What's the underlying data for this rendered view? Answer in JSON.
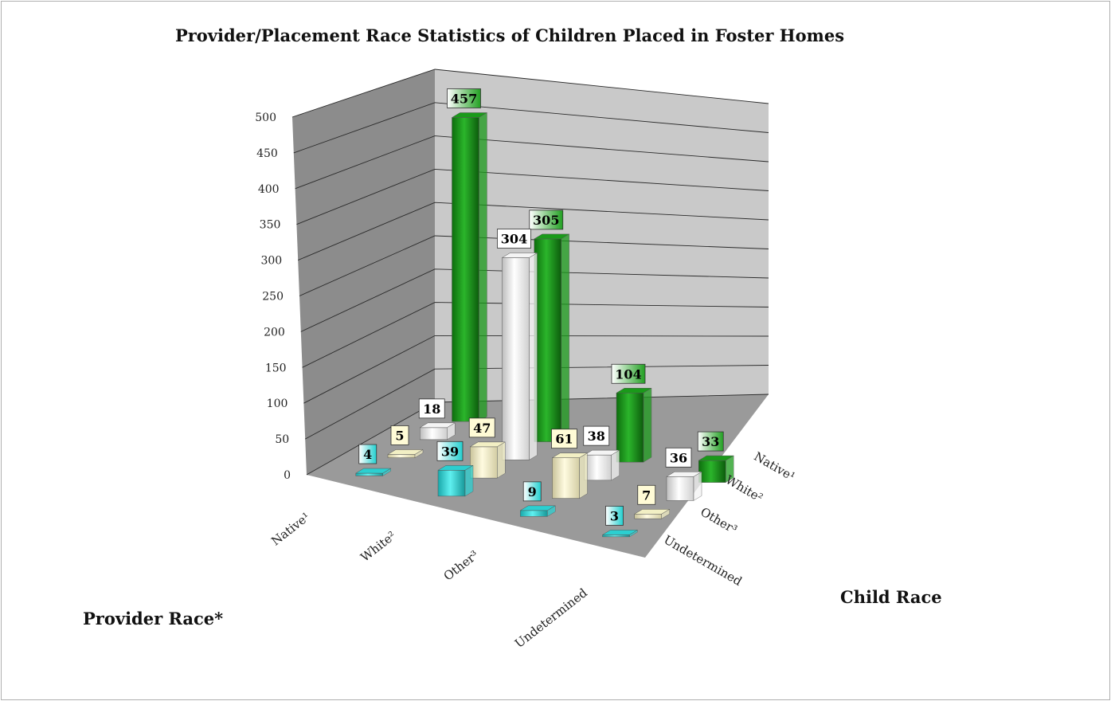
{
  "chart_data": {
    "type": "bar",
    "title": "Provider/Placement Race Statistics of Children Placed in Foster Homes",
    "xlabel": "Provider Race*",
    "zlabel": "Child Race",
    "ylim": [
      0,
      500
    ],
    "yticks": [
      "0",
      "50",
      "100",
      "150",
      "200",
      "250",
      "300",
      "350",
      "400",
      "450",
      "500"
    ],
    "provider_categories": [
      "Native¹",
      "White²",
      "Other³",
      "Undetermined"
    ],
    "child_categories": [
      "Native¹",
      "White²",
      "Other³",
      "Undetermined"
    ],
    "series": [
      {
        "name": "Native¹",
        "color": "#1a9a1a",
        "values": [
          457,
          305,
          104,
          33
        ]
      },
      {
        "name": "White²",
        "color": "#f4f4f4",
        "values": [
          18,
          304,
          38,
          36
        ]
      },
      {
        "name": "Other³",
        "color": "#f2efc4",
        "values": [
          5,
          47,
          61,
          7
        ]
      },
      {
        "name": "Undetermined",
        "color": "#2ccfd0",
        "values": [
          4,
          39,
          9,
          3
        ]
      }
    ]
  }
}
